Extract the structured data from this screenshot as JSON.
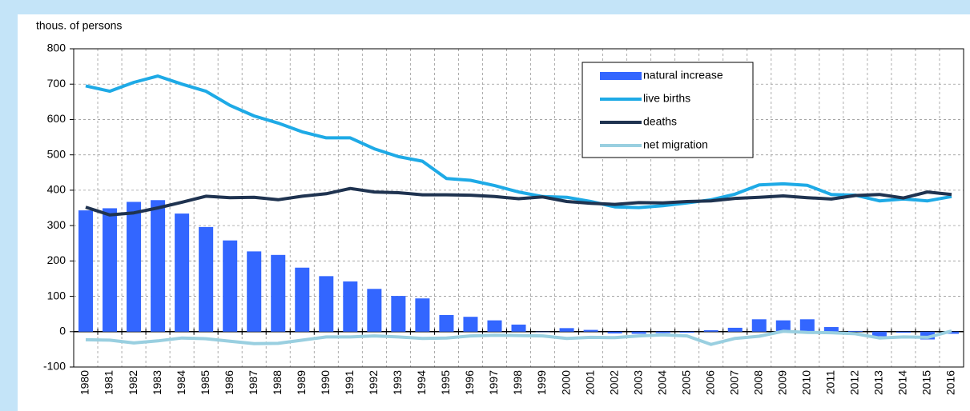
{
  "chart_data": {
    "type": "combo",
    "ylabel": "thous. of persons",
    "categories": [
      "1980",
      "1981",
      "1982",
      "1983",
      "1984",
      "1985",
      "1986",
      "1987",
      "1988",
      "1989",
      "1990",
      "1991",
      "1992",
      "1993",
      "1994",
      "1995",
      "1996",
      "1997",
      "1998",
      "1999",
      "2000",
      "2001",
      "2002",
      "2003",
      "2004",
      "2005",
      "2006",
      "2007",
      "2008",
      "2009",
      "2010",
      "2011",
      "2012",
      "2013",
      "2014",
      "2015",
      "2016"
    ],
    "series": [
      {
        "name": "natural increase",
        "type": "bar",
        "color": "#3366ff",
        "values": [
          343,
          349,
          367,
          372,
          334,
          296,
          258,
          227,
          217,
          181,
          157,
          142,
          121,
          101,
          94,
          47,
          42,
          32,
          20,
          -1,
          10,
          5,
          -5,
          -6,
          -4,
          -3,
          4,
          11,
          35,
          32,
          35,
          13,
          2,
          -13,
          -3,
          -22,
          -6
        ]
      },
      {
        "name": "live births",
        "type": "line",
        "color": "#1eaae6",
        "values": [
          695,
          680,
          705,
          723,
          700,
          680,
          640,
          610,
          590,
          565,
          548,
          548,
          517,
          495,
          482,
          433,
          428,
          413,
          395,
          382,
          380,
          368,
          353,
          351,
          356,
          364,
          373,
          389,
          415,
          418,
          414,
          388,
          386,
          370,
          375,
          370,
          382
        ]
      },
      {
        "name": "deaths",
        "type": "line",
        "color": "#1f3350",
        "values": [
          352,
          330,
          336,
          350,
          366,
          383,
          379,
          380,
          373,
          383,
          390,
          405,
          395,
          393,
          387,
          387,
          386,
          382,
          376,
          381,
          368,
          363,
          360,
          365,
          364,
          368,
          370,
          377,
          380,
          384,
          379,
          375,
          385,
          388,
          378,
          395,
          388
        ]
      },
      {
        "name": "net migration",
        "type": "line",
        "color": "#99cfe0",
        "values": [
          -23,
          -24,
          -32,
          -26,
          -18,
          -20,
          -27,
          -34,
          -33,
          -24,
          -15,
          -15,
          -12,
          -15,
          -19,
          -18,
          -12,
          -10,
          -11,
          -12,
          -19,
          -16,
          -17,
          -12,
          -9,
          -12,
          -36,
          -19,
          -13,
          1,
          -2,
          -3,
          -6,
          -18,
          -15,
          -16,
          2
        ]
      }
    ],
    "ylim": [
      -100,
      800
    ],
    "yticks": [
      -100,
      0,
      100,
      200,
      300,
      400,
      500,
      600,
      700,
      800
    ],
    "grid": true,
    "legend": "top-right"
  }
}
